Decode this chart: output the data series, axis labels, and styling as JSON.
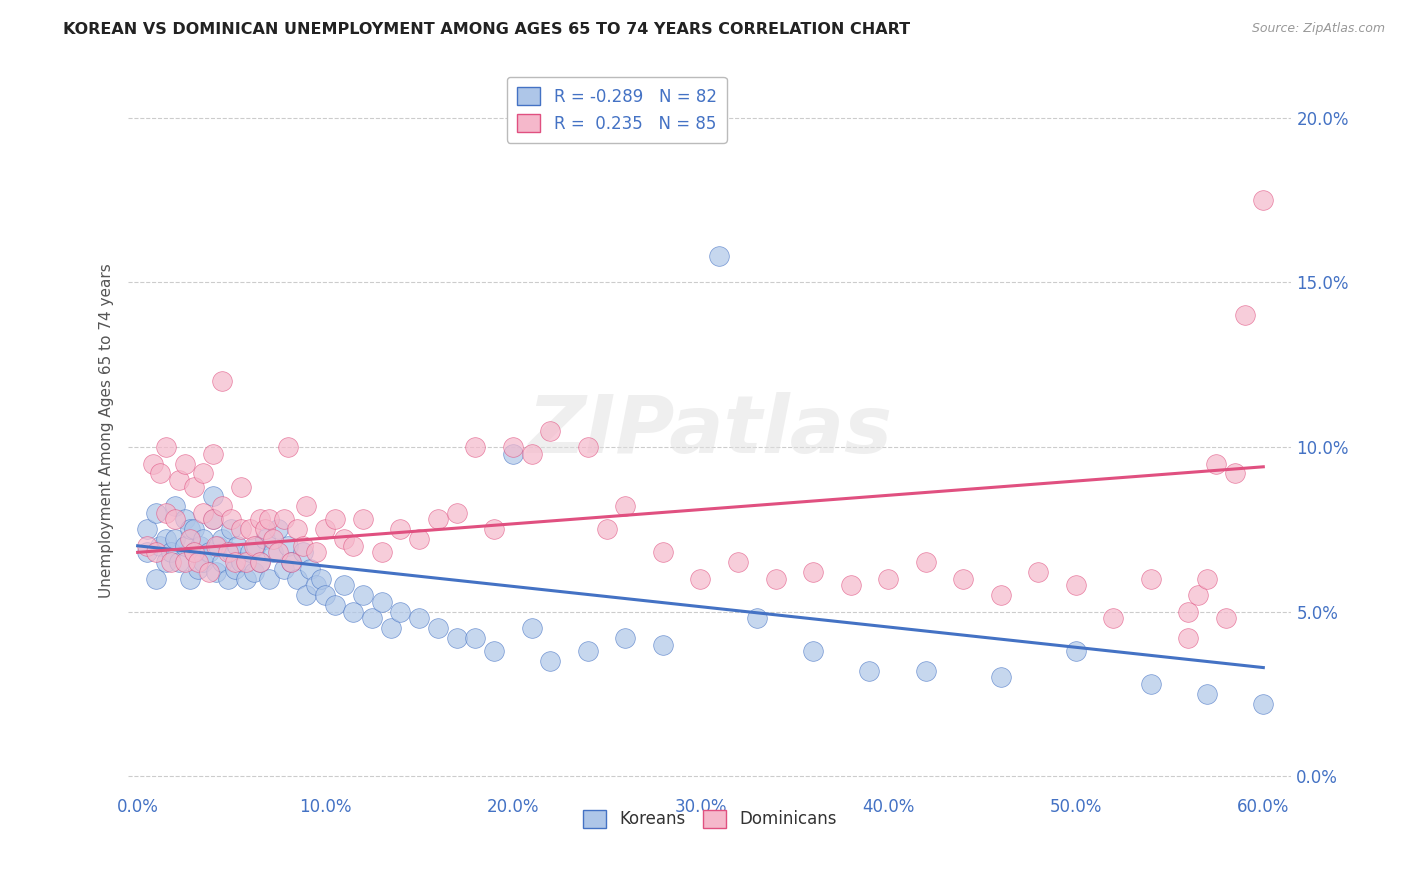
{
  "title": "KOREAN VS DOMINICAN UNEMPLOYMENT AMONG AGES 65 TO 74 YEARS CORRELATION CHART",
  "source": "Source: ZipAtlas.com",
  "ylabel": "Unemployment Among Ages 65 to 74 years",
  "xlabel_ticks": [
    "0.0%",
    "10.0%",
    "20.0%",
    "30.0%",
    "40.0%",
    "50.0%",
    "60.0%"
  ],
  "xlabel_vals": [
    0.0,
    0.1,
    0.2,
    0.3,
    0.4,
    0.5,
    0.6
  ],
  "ylabel_ticks": [
    "0.0%",
    "5.0%",
    "10.0%",
    "15.0%",
    "20.0%"
  ],
  "ylabel_vals": [
    0.0,
    0.05,
    0.1,
    0.15,
    0.2
  ],
  "xlim": [
    -0.005,
    0.615
  ],
  "ylim": [
    -0.005,
    0.215
  ],
  "korean_color": "#aec6e8",
  "dominican_color": "#f5b8cb",
  "korean_line_color": "#4472c4",
  "dominican_line_color": "#e05080",
  "korean_R": -0.289,
  "korean_N": 82,
  "dominican_R": 0.235,
  "dominican_N": 85,
  "watermark": "ZIPatlas",
  "background_color": "#ffffff",
  "grid_color": "#cccccc",
  "title_color": "#222222",
  "axis_label_color": "#4472c4",
  "korean_x": [
    0.005,
    0.005,
    0.01,
    0.01,
    0.012,
    0.015,
    0.015,
    0.018,
    0.02,
    0.02,
    0.022,
    0.025,
    0.025,
    0.028,
    0.028,
    0.03,
    0.03,
    0.032,
    0.033,
    0.035,
    0.035,
    0.038,
    0.04,
    0.04,
    0.042,
    0.043,
    0.045,
    0.045,
    0.048,
    0.05,
    0.05,
    0.052,
    0.053,
    0.055,
    0.058,
    0.06,
    0.062,
    0.063,
    0.065,
    0.068,
    0.07,
    0.072,
    0.075,
    0.078,
    0.08,
    0.082,
    0.085,
    0.088,
    0.09,
    0.092,
    0.095,
    0.098,
    0.1,
    0.105,
    0.11,
    0.115,
    0.12,
    0.125,
    0.13,
    0.135,
    0.14,
    0.15,
    0.16,
    0.17,
    0.18,
    0.19,
    0.2,
    0.21,
    0.22,
    0.24,
    0.26,
    0.28,
    0.31,
    0.33,
    0.36,
    0.39,
    0.42,
    0.46,
    0.5,
    0.54,
    0.57,
    0.6
  ],
  "korean_y": [
    0.068,
    0.075,
    0.06,
    0.08,
    0.07,
    0.065,
    0.072,
    0.068,
    0.072,
    0.082,
    0.065,
    0.07,
    0.078,
    0.06,
    0.075,
    0.068,
    0.075,
    0.063,
    0.07,
    0.065,
    0.072,
    0.068,
    0.078,
    0.085,
    0.062,
    0.07,
    0.065,
    0.072,
    0.06,
    0.068,
    0.075,
    0.063,
    0.07,
    0.065,
    0.06,
    0.068,
    0.062,
    0.07,
    0.065,
    0.072,
    0.06,
    0.068,
    0.075,
    0.063,
    0.07,
    0.065,
    0.06,
    0.068,
    0.055,
    0.063,
    0.058,
    0.06,
    0.055,
    0.052,
    0.058,
    0.05,
    0.055,
    0.048,
    0.053,
    0.045,
    0.05,
    0.048,
    0.045,
    0.042,
    0.042,
    0.038,
    0.098,
    0.045,
    0.035,
    0.038,
    0.042,
    0.04,
    0.158,
    0.048,
    0.038,
    0.032,
    0.032,
    0.03,
    0.038,
    0.028,
    0.025,
    0.022
  ],
  "dominican_x": [
    0.005,
    0.008,
    0.01,
    0.012,
    0.015,
    0.015,
    0.018,
    0.02,
    0.022,
    0.025,
    0.025,
    0.028,
    0.03,
    0.03,
    0.032,
    0.035,
    0.035,
    0.038,
    0.04,
    0.04,
    0.042,
    0.045,
    0.045,
    0.048,
    0.05,
    0.052,
    0.055,
    0.055,
    0.058,
    0.06,
    0.062,
    0.065,
    0.065,
    0.068,
    0.07,
    0.072,
    0.075,
    0.078,
    0.08,
    0.082,
    0.085,
    0.088,
    0.09,
    0.095,
    0.1,
    0.105,
    0.11,
    0.115,
    0.12,
    0.13,
    0.14,
    0.15,
    0.16,
    0.17,
    0.18,
    0.19,
    0.2,
    0.21,
    0.22,
    0.24,
    0.25,
    0.26,
    0.28,
    0.3,
    0.32,
    0.34,
    0.36,
    0.38,
    0.4,
    0.42,
    0.44,
    0.46,
    0.48,
    0.5,
    0.52,
    0.54,
    0.56,
    0.56,
    0.565,
    0.57,
    0.575,
    0.58,
    0.585,
    0.59,
    0.6
  ],
  "dominican_y": [
    0.07,
    0.095,
    0.068,
    0.092,
    0.1,
    0.08,
    0.065,
    0.078,
    0.09,
    0.065,
    0.095,
    0.072,
    0.068,
    0.088,
    0.065,
    0.08,
    0.092,
    0.062,
    0.078,
    0.098,
    0.07,
    0.082,
    0.12,
    0.068,
    0.078,
    0.065,
    0.075,
    0.088,
    0.065,
    0.075,
    0.07,
    0.078,
    0.065,
    0.075,
    0.078,
    0.072,
    0.068,
    0.078,
    0.1,
    0.065,
    0.075,
    0.07,
    0.082,
    0.068,
    0.075,
    0.078,
    0.072,
    0.07,
    0.078,
    0.068,
    0.075,
    0.072,
    0.078,
    0.08,
    0.1,
    0.075,
    0.1,
    0.098,
    0.105,
    0.1,
    0.075,
    0.082,
    0.068,
    0.06,
    0.065,
    0.06,
    0.062,
    0.058,
    0.06,
    0.065,
    0.06,
    0.055,
    0.062,
    0.058,
    0.048,
    0.06,
    0.05,
    0.042,
    0.055,
    0.06,
    0.095,
    0.048,
    0.092,
    0.14,
    0.175
  ]
}
